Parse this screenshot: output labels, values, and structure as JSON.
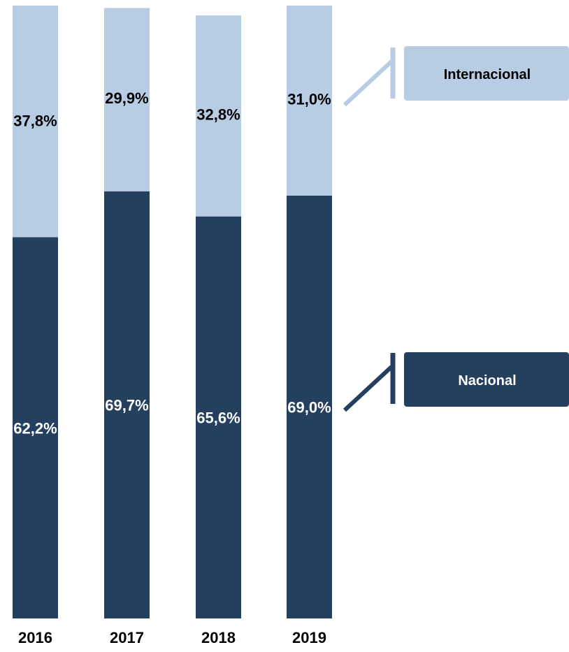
{
  "chart_data": {
    "type": "bar",
    "stacked": true,
    "categories": [
      "2016",
      "2017",
      "2018",
      "2019"
    ],
    "series": [
      {
        "name": "Nacional",
        "values": [
          62.2,
          69.7,
          65.6,
          69.0
        ],
        "labels": [
          "62,2%",
          "69,7%",
          "65,6%",
          "69,0%"
        ],
        "color": "#253f5e",
        "label_color": "#ffffff"
      },
      {
        "name": "Internacional",
        "values": [
          37.8,
          29.9,
          32.8,
          31.0
        ],
        "labels": [
          "37,8%",
          "29,9%",
          "32,8%",
          "31,0%"
        ],
        "color": "#b8cce4",
        "label_color": "#000000"
      }
    ],
    "ylim": [
      0,
      100
    ],
    "grid": false,
    "legend": "right"
  }
}
